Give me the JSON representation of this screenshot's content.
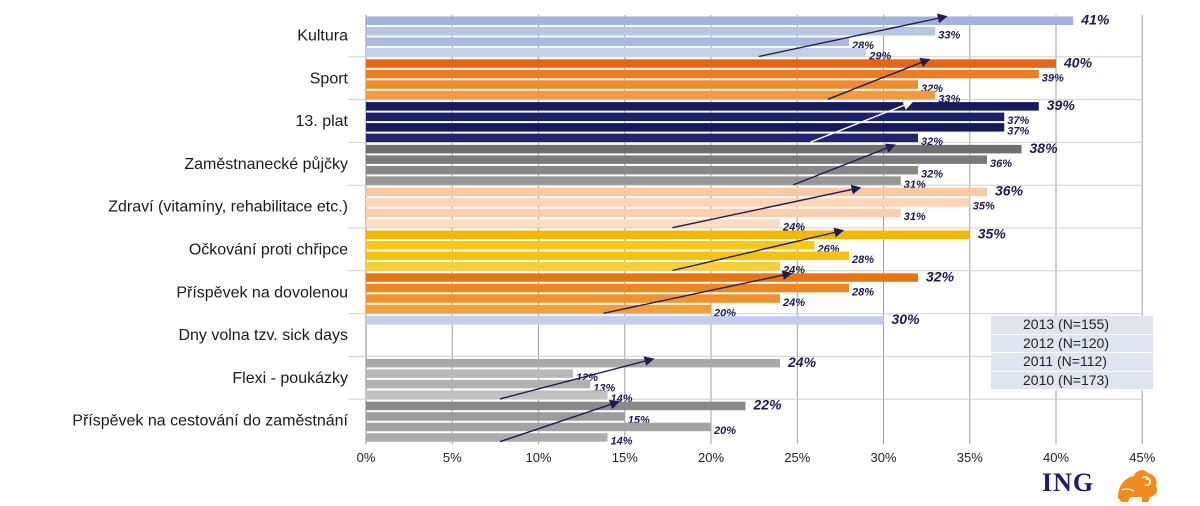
{
  "chart_data": {
    "type": "bar",
    "orientation": "horizontal",
    "categories": [
      "Kultura",
      "Sport",
      "13. plat",
      "Zaměstnanecké půjčky",
      "Zdraví (vitamíny, rehabilitace etc.)",
      "Očkování proti chřipce",
      "Příspěvek na dovolenou",
      "Dny volna tzv. sick days",
      "Flexi - poukázky",
      "Příspěvek na cestování do zaměstnání"
    ],
    "series": [
      {
        "name": "2013 (N=155)",
        "values": [
          41,
          40,
          39,
          38,
          36,
          35,
          32,
          30,
          24,
          22
        ]
      },
      {
        "name": "2012 (N=120)",
        "values": [
          33,
          39,
          37,
          36,
          35,
          26,
          28,
          null,
          12,
          15
        ]
      },
      {
        "name": "2011 (N=112)",
        "values": [
          28,
          32,
          37,
          32,
          31,
          28,
          24,
          null,
          13,
          20
        ]
      },
      {
        "name": "2010 (N=173)",
        "values": [
          29,
          33,
          32,
          31,
          24,
          24,
          20,
          null,
          14,
          14
        ]
      }
    ],
    "x_ticks": [
      "0%",
      "5%",
      "10%",
      "15%",
      "20%",
      "25%",
      "30%",
      "35%",
      "40%",
      "45%"
    ],
    "xlim": [
      0,
      45
    ],
    "value_suffix": "%",
    "grid": true,
    "legend_position": "right",
    "trend_arrows": true,
    "colors": {
      "Kultura": [
        "#9fb3dc",
        "#b7c6e6",
        "#a9badf",
        "#c3cfea"
      ],
      "Sport": [
        "#e8650f",
        "#ef7a1f",
        "#f08a2a",
        "#f39a3a"
      ],
      "13. plat": [
        "#151a5e",
        "#1c2269",
        "#151a5e",
        "#1f2570"
      ],
      "Zaměstnanecké půjčky": [
        "#6e6e6e",
        "#7b7b7b",
        "#888888",
        "#969696"
      ],
      "Zdraví (vitamíny, rehabilitace etc.)": [
        "#f7c9a4",
        "#fad5b6",
        "#f9cfae",
        "#fbddc4"
      ],
      "Očkování proti chřipce": [
        "#f3b800",
        "#f8c812",
        "#f6c20c",
        "#fad030"
      ],
      "Příspěvek na dovolenou": [
        "#e8760f",
        "#ee861d",
        "#f0922a",
        "#f39e3a"
      ],
      "Dny volna tzv. sick days": [
        "#c6cbf0",
        "#c6cbf0",
        "#c6cbf0",
        "#c6cbf0"
      ],
      "Flexi - poukázky": [
        "#a9a9a9",
        "#b8b8b8",
        "#b1b1b1",
        "#c0c0c0"
      ],
      "Příspěvek na cestování do zaměstnání": [
        "#8a8a8a",
        "#9c9c9c",
        "#a3a3a3",
        "#adadad"
      ],
      "arrow_dark": "#1c1c50",
      "arrow_light": "#ffffff",
      "grid": "#a0a0a0"
    }
  },
  "legend": {
    "items": [
      "2013 (N=155)",
      "2012 (N=120)",
      "2011 (N=112)",
      "2010 (N=173)"
    ]
  },
  "brand": {
    "logo_text": "ING",
    "logo_icon": "lion-icon"
  }
}
